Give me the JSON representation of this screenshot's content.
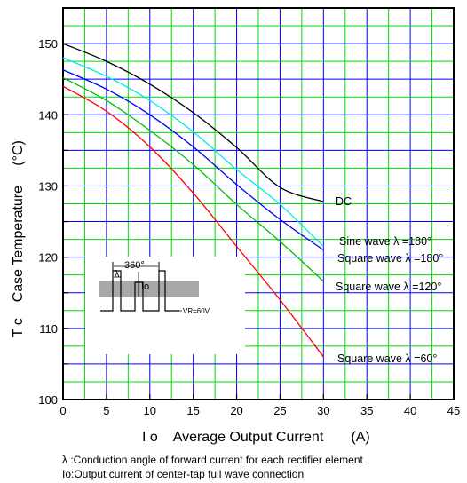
{
  "chart_data": {
    "type": "line",
    "title": "",
    "xlabel": "I o    Average Output Current       (A)",
    "ylabel": "T c    Case Temperature     (°C)",
    "xlim": [
      0,
      45
    ],
    "ylim": [
      100,
      155
    ],
    "x_ticks": [
      "0",
      "5",
      "10",
      "15",
      "20",
      "25",
      "30",
      "35",
      "40",
      "45"
    ],
    "y_ticks": [
      "100",
      "110",
      "120",
      "130",
      "140",
      "150"
    ],
    "grid": true,
    "series": [
      {
        "name": "DC",
        "color": "#000000",
        "x": [
          0,
          5,
          10,
          15,
          20,
          25,
          30
        ],
        "y": [
          150,
          147.5,
          144.3,
          140.3,
          135.4,
          129.8,
          127.8
        ]
      },
      {
        "name": "Sine wave λ =180°",
        "color": "#00e8f0",
        "x": [
          0,
          5,
          10,
          15,
          20,
          25,
          30
        ],
        "y": [
          148,
          145.4,
          142.0,
          137.6,
          132.3,
          127.4,
          121.5
        ]
      },
      {
        "name": "Square wave λ =180°",
        "color": "#0000ff",
        "x": [
          0,
          5,
          10,
          15,
          20,
          25,
          30
        ],
        "y": [
          146.3,
          143.6,
          140.0,
          135.5,
          130.2,
          125.3,
          121.0
        ]
      },
      {
        "name": "Square wave λ =120°",
        "color": "#00c000",
        "x": [
          0,
          5,
          10,
          15,
          20,
          25,
          30
        ],
        "y": [
          145.2,
          142.0,
          137.8,
          133.0,
          127.4,
          122.2,
          116.6
        ]
      },
      {
        "name": "Square wave λ =60°",
        "color": "#ff0000",
        "x": [
          0,
          5,
          10,
          15,
          20,
          25,
          30
        ],
        "y": [
          144,
          140.5,
          135.5,
          129.0,
          121.5,
          114.0,
          106.0
        ]
      }
    ],
    "inset": {
      "period_label": "360°",
      "lambda_label": "λ",
      "current_label": "Io",
      "voltage_label": "VR=60V"
    }
  },
  "footnotes": [
    "λ :Conduction angle of forward current for each rectifier element",
    "Io:Output current of center-tap full wave connection"
  ]
}
